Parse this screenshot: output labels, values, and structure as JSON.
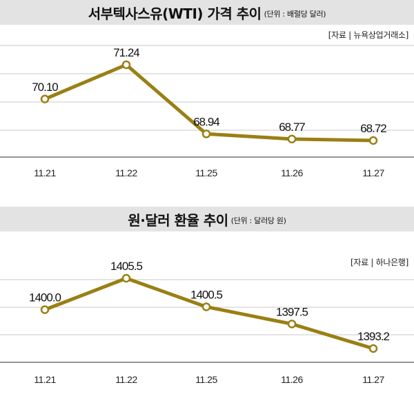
{
  "chart_data": [
    {
      "type": "line",
      "title": "서부텍사스유(WTI) 가격 추이",
      "unit_note": "(단위 : 배럴당 달러)",
      "source": "[자료 | 뉴욕상업거래소]",
      "categories": [
        "11.21",
        "11.22",
        "11.25",
        "11.26",
        "11.27"
      ],
      "value_labels": [
        "70.10",
        "71.24",
        "68.94",
        "68.77",
        "68.72"
      ],
      "values": [
        70.1,
        71.24,
        68.94,
        68.77,
        68.72
      ],
      "line_color": "#9a7f14",
      "grid": true
    },
    {
      "type": "line",
      "title": "원·달러 환율 추이",
      "unit_note": "(단위 : 달러당 원)",
      "source": "[자료 | 하나은행]",
      "categories": [
        "11.21",
        "11.22",
        "11.25",
        "11.26",
        "11.27"
      ],
      "value_labels": [
        "1400.0",
        "1405.5",
        "1400.5",
        "1397.5",
        "1393.2"
      ],
      "values": [
        1400.0,
        1405.5,
        1400.5,
        1397.5,
        1393.2
      ],
      "line_color": "#9a7f14",
      "grid": true
    }
  ]
}
